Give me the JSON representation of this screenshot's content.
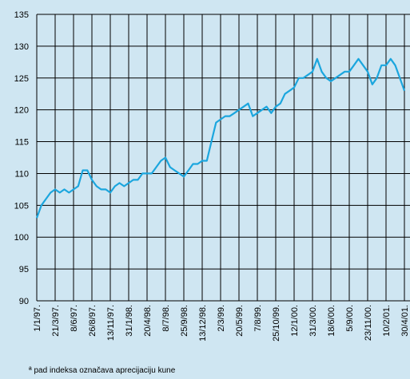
{
  "chart_data": {
    "type": "line",
    "categories": [
      "1/1/97.",
      null,
      null,
      null,
      "21/3/97.",
      null,
      null,
      null,
      "8/6/97.",
      null,
      null,
      null,
      "26/8/97.",
      null,
      null,
      null,
      "13/11/97.",
      null,
      null,
      null,
      "31/1/98.",
      null,
      null,
      null,
      "20/4/98.",
      null,
      null,
      null,
      "8/7/98.",
      null,
      null,
      null,
      "25/9/98.",
      null,
      null,
      null,
      "13/12/98.",
      null,
      null,
      null,
      "2/3/99.",
      null,
      null,
      null,
      "20/5/99.",
      null,
      null,
      null,
      "7/8/99.",
      null,
      null,
      null,
      "25/10/99.",
      null,
      null,
      null,
      "12/1/00.",
      null,
      null,
      null,
      "31/3/00.",
      null,
      null,
      null,
      "18/6/00.",
      null,
      null,
      null,
      "5/9/00.",
      null,
      null,
      null,
      "23/11/00.",
      null,
      null,
      null,
      "10/2/01.",
      null,
      null,
      null,
      "30/4/01."
    ],
    "series": [
      {
        "color": "#1ba6de",
        "values": [
          103,
          105,
          106,
          107,
          107.5,
          107,
          107.5,
          107,
          107.5,
          108,
          110.5,
          110.5,
          109,
          108,
          107.5,
          107.5,
          107,
          108,
          108.5,
          108,
          108.5,
          109,
          109,
          110,
          110,
          110,
          111,
          112,
          112.5,
          111,
          110.5,
          110,
          109.5,
          110.5,
          111.5,
          111.5,
          112,
          112,
          115,
          118,
          118.5,
          119,
          119,
          119.5,
          120,
          120.5,
          121,
          119,
          119.5,
          120,
          120.5,
          119.5,
          120.5,
          121,
          122.5,
          123,
          123.5,
          125,
          125,
          125.5,
          126,
          128,
          126,
          125,
          124.5,
          125,
          125.5,
          126,
          126,
          127,
          128,
          127,
          126,
          124,
          125,
          127,
          127,
          128,
          127,
          125,
          123
        ]
      }
    ],
    "ylim": [
      90,
      135
    ],
    "yticks": [
      90,
      95,
      100,
      105,
      110,
      115,
      120,
      125,
      130,
      135
    ],
    "grid": true,
    "footnote": "ª pad indeksa označava aprecijaciju kune"
  }
}
